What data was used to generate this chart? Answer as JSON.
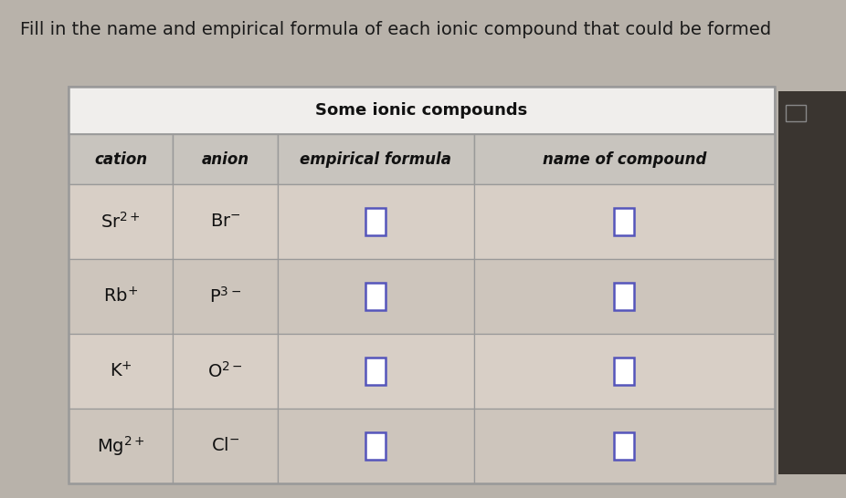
{
  "title": "Fill in the name and empirical formula of each ionic compound that could be formed",
  "table_title": "Some ionic compounds",
  "col_headers": [
    "cation",
    "anion",
    "empirical formula",
    "name of compound"
  ],
  "rows": [
    [
      "Sr$^{2+}$",
      "Br$^{-}$"
    ],
    [
      "Rb$^{+}$",
      "P$^{3-}$"
    ],
    [
      "K$^{+}$",
      "O$^{2-}$"
    ],
    [
      "Mg$^{2+}$",
      "Cl$^{-}$"
    ]
  ],
  "bg_color": "#b8b2aa",
  "table_outer_bg": "#f0eeec",
  "title_row_bg": "#f0eeec",
  "header_row_bg": "#c8c4be",
  "data_row_bg_odd": "#d8cfc6",
  "data_row_bg_even": "#cdc5bc",
  "right_panel_bg": "#3a3530",
  "input_box_color": "#5555bb",
  "title_color": "#1a1a1a",
  "header_text_color": "#111111",
  "cell_text_color": "#111111",
  "border_color": "#999999",
  "title_fontsize": 14,
  "table_title_fontsize": 13,
  "header_fontsize": 12,
  "cell_fontsize": 14,
  "fig_width": 9.26,
  "fig_height": 5.46
}
